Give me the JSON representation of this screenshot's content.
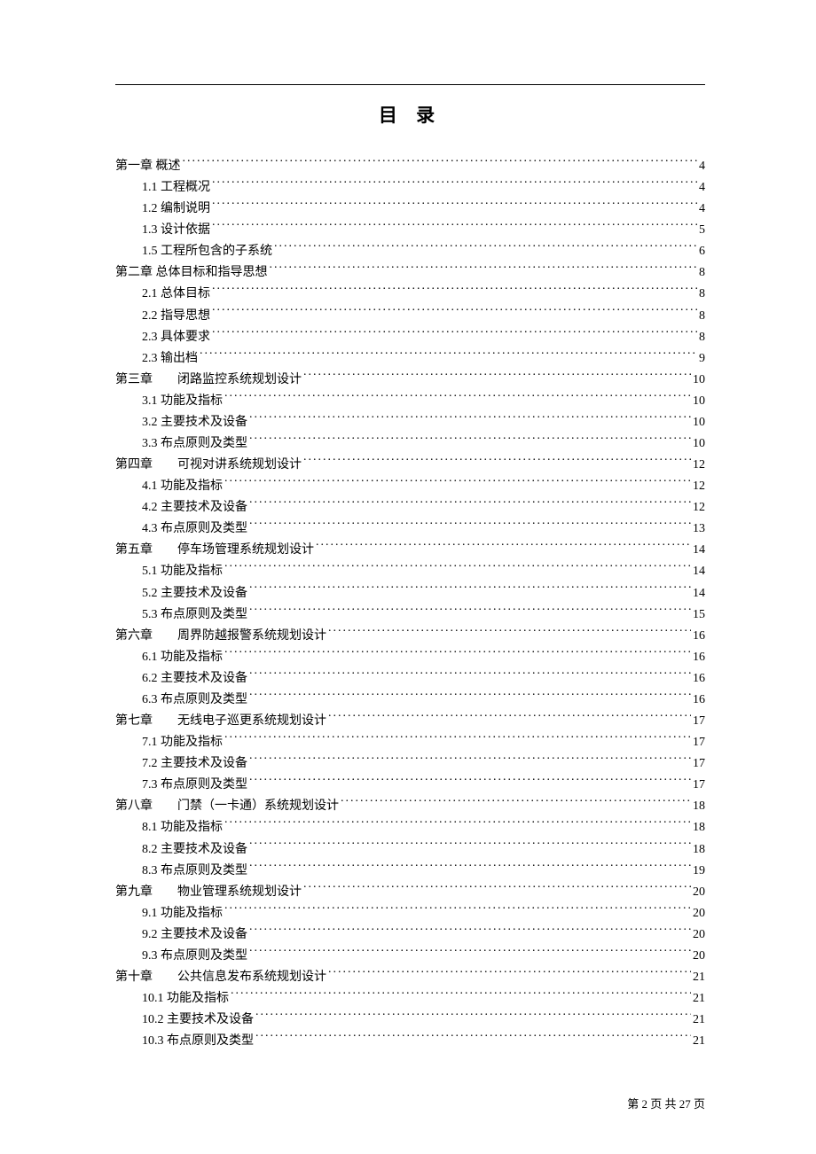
{
  "title": "目 录",
  "footer": {
    "prefix": "第",
    "current": "2",
    "middle": "页 共",
    "total": "27",
    "suffix": "页"
  },
  "entries": [
    {
      "level": 0,
      "label": "第一章 概述",
      "page": "4"
    },
    {
      "level": 1,
      "label": "1.1 工程概况",
      "page": "4"
    },
    {
      "level": 1,
      "label": "1.2 编制说明",
      "page": "4"
    },
    {
      "level": 1,
      "label": "1.3 设计依据",
      "page": "5"
    },
    {
      "level": 1,
      "label": "1.5 工程所包含的子系统",
      "page": "6"
    },
    {
      "level": 0,
      "label": "第二章 总体目标和指导思想",
      "page": "8"
    },
    {
      "level": 1,
      "label": "2.1 总体目标",
      "page": "8"
    },
    {
      "level": 1,
      "label": "2.2 指导思想",
      "page": "8"
    },
    {
      "level": 1,
      "label": "2.3 具体要求",
      "page": "8"
    },
    {
      "level": 1,
      "label": "2.3 输出档",
      "page": "9"
    },
    {
      "level": 0,
      "label": "第三章　　闭路监控系统规划设计",
      "page": "10"
    },
    {
      "level": 1,
      "label": "3.1 功能及指标",
      "page": "10"
    },
    {
      "level": 1,
      "label": "3.2 主要技术及设备",
      "page": "10"
    },
    {
      "level": 1,
      "label": "3.3 布点原则及类型",
      "page": "10"
    },
    {
      "level": 0,
      "label": "第四章　　可视对讲系统规划设计",
      "page": "12"
    },
    {
      "level": 1,
      "label": "4.1 功能及指标",
      "page": "12"
    },
    {
      "level": 1,
      "label": "4.2 主要技术及设备",
      "page": "12"
    },
    {
      "level": 1,
      "label": "4.3 布点原则及类型",
      "page": "13"
    },
    {
      "level": 0,
      "label": "第五章　　停车场管理系统规划设计",
      "page": "14"
    },
    {
      "level": 1,
      "label": "5.1 功能及指标",
      "page": "14"
    },
    {
      "level": 1,
      "label": "5.2 主要技术及设备",
      "page": "14"
    },
    {
      "level": 1,
      "label": "5.3 布点原则及类型",
      "page": "15"
    },
    {
      "level": 0,
      "label": "第六章　　周界防越报警系统规划设计",
      "page": "16"
    },
    {
      "level": 1,
      "label": "6.1 功能及指标",
      "page": "16"
    },
    {
      "level": 1,
      "label": "6.2 主要技术及设备",
      "page": "16"
    },
    {
      "level": 1,
      "label": "6.3 布点原则及类型",
      "page": "16"
    },
    {
      "level": 0,
      "label": "第七章　　无线电子巡更系统规划设计",
      "page": "17"
    },
    {
      "level": 1,
      "label": "7.1 功能及指标",
      "page": "17"
    },
    {
      "level": 1,
      "label": "7.2 主要技术及设备",
      "page": "17"
    },
    {
      "level": 1,
      "label": "7.3 布点原则及类型",
      "page": "17"
    },
    {
      "level": 0,
      "label": "第八章　　门禁（一卡通）系统规划设计",
      "page": "18"
    },
    {
      "level": 1,
      "label": "8.1 功能及指标",
      "page": "18"
    },
    {
      "level": 1,
      "label": "8.2 主要技术及设备",
      "page": "18"
    },
    {
      "level": 1,
      "label": "8.3 布点原则及类型",
      "page": "19"
    },
    {
      "level": 0,
      "label": "第九章　　物业管理系统规划设计",
      "page": "20"
    },
    {
      "level": 1,
      "label": "9.1 功能及指标",
      "page": "20"
    },
    {
      "level": 1,
      "label": "9.2 主要技术及设备",
      "page": "20"
    },
    {
      "level": 1,
      "label": "9.3 布点原则及类型",
      "page": "20"
    },
    {
      "level": 0,
      "label": "第十章　　公共信息发布系统规划设计",
      "page": "21"
    },
    {
      "level": 1,
      "label": "10.1 功能及指标",
      "page": "21"
    },
    {
      "level": 1,
      "label": "10.2 主要技术及设备",
      "page": "21"
    },
    {
      "level": 1,
      "label": "10.3 布点原则及类型",
      "page": "21"
    }
  ]
}
